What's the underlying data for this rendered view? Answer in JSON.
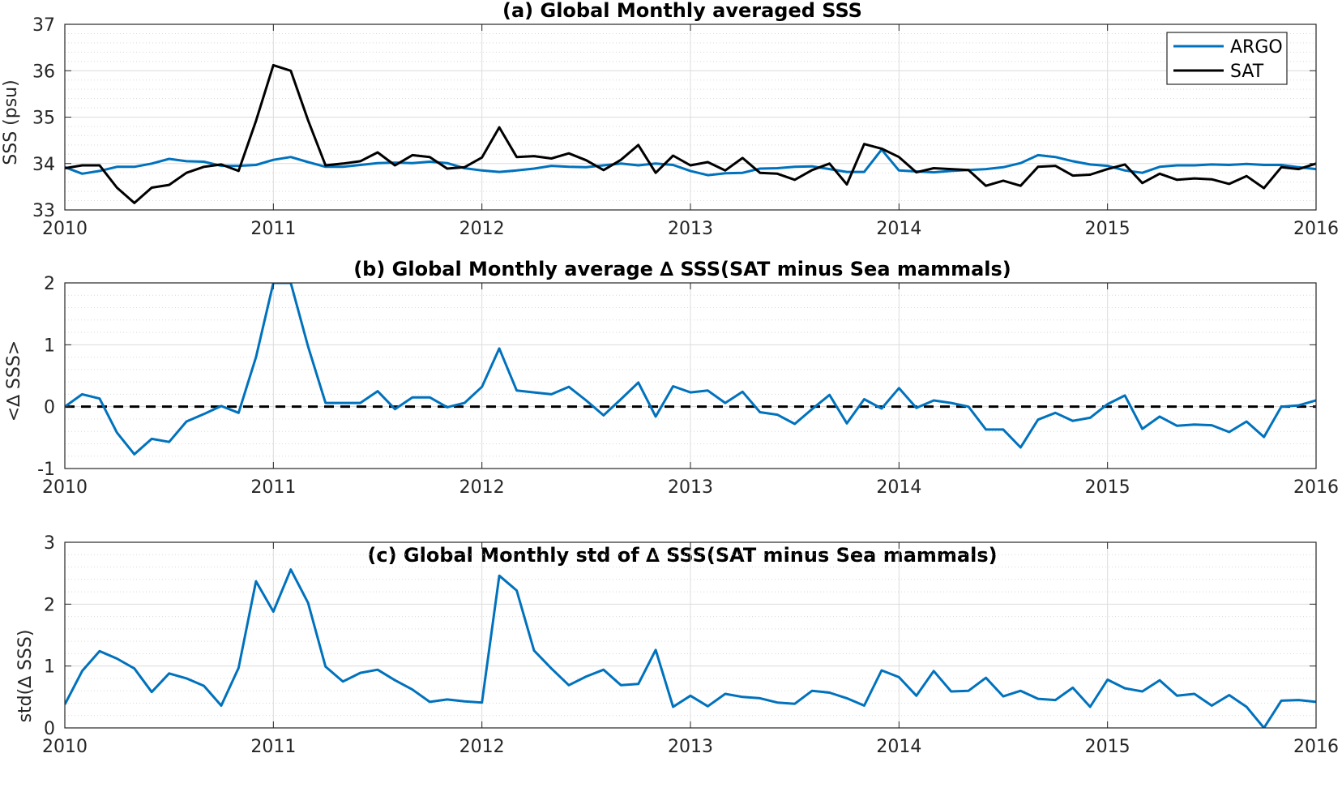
{
  "chart_data": [
    {
      "type": "line",
      "title": "(a) Global Monthly averaged SSS",
      "xlabel": "",
      "ylabel": "SSS (psu)",
      "xlim": [
        2010,
        2016
      ],
      "ylim": [
        33,
        37
      ],
      "xticks": [
        2010,
        2011,
        2012,
        2013,
        2014,
        2015,
        2016
      ],
      "yticks": [
        33,
        34,
        35,
        36,
        37
      ],
      "grid": true,
      "legend_position": "top-right",
      "series": [
        {
          "name": "ARGO",
          "color": "#0072BD",
          "x": [
            2010,
            2010.0833,
            2010.1667,
            2010.25,
            2010.3333,
            2010.4167,
            2010.5,
            2010.5833,
            2010.6667,
            2010.75,
            2010.8333,
            2010.9167,
            2011,
            2011.0833,
            2011.1667,
            2011.25,
            2011.3333,
            2011.4167,
            2011.5,
            2011.5833,
            2011.6667,
            2011.75,
            2011.8333,
            2011.9167,
            2012,
            2012.0833,
            2012.1667,
            2012.25,
            2012.3333,
            2012.4167,
            2012.5,
            2012.5833,
            2012.6667,
            2012.75,
            2012.8333,
            2012.9167,
            2013,
            2013.0833,
            2013.1667,
            2013.25,
            2013.3333,
            2013.4167,
            2013.5,
            2013.5833,
            2013.6667,
            2013.75,
            2013.8333,
            2013.9167,
            2014,
            2014.0833,
            2014.1667,
            2014.25,
            2014.3333,
            2014.4167,
            2014.5,
            2014.5833,
            2014.6667,
            2014.75,
            2014.8333,
            2014.9167,
            2015,
            2015.0833,
            2015.1667,
            2015.25,
            2015.3333,
            2015.4167,
            2015.5,
            2015.5833,
            2015.6667,
            2015.75,
            2015.8333,
            2015.9167,
            2016
          ],
          "y": [
            33.92,
            33.78,
            33.84,
            33.93,
            33.93,
            34.0,
            34.1,
            34.05,
            34.04,
            33.95,
            33.95,
            33.97,
            34.08,
            34.14,
            34.03,
            33.93,
            33.93,
            33.97,
            34.01,
            34.02,
            34.01,
            34.04,
            34.01,
            33.9,
            33.85,
            33.82,
            33.85,
            33.89,
            33.95,
            33.93,
            33.92,
            33.96,
            34.0,
            33.96,
            34.0,
            33.97,
            33.84,
            33.75,
            33.79,
            33.8,
            33.89,
            33.9,
            33.93,
            33.94,
            33.88,
            33.82,
            33.82,
            34.3,
            33.85,
            33.83,
            33.81,
            33.84,
            33.86,
            33.88,
            33.92,
            34.01,
            34.18,
            34.14,
            34.05,
            33.98,
            33.95,
            33.85,
            33.8,
            33.93,
            33.96,
            33.96,
            33.98,
            33.97,
            33.99,
            33.97,
            33.97,
            33.92,
            33.88
          ]
        },
        {
          "name": "SAT",
          "color": "#000000",
          "x": [
            2010,
            2010.0833,
            2010.1667,
            2010.25,
            2010.3333,
            2010.4167,
            2010.5,
            2010.5833,
            2010.6667,
            2010.75,
            2010.8333,
            2010.9167,
            2011,
            2011.0833,
            2011.1667,
            2011.25,
            2011.3333,
            2011.4167,
            2011.5,
            2011.5833,
            2011.6667,
            2011.75,
            2011.8333,
            2011.9167,
            2012,
            2012.0833,
            2012.1667,
            2012.25,
            2012.3333,
            2012.4167,
            2012.5,
            2012.5833,
            2012.6667,
            2012.75,
            2012.8333,
            2012.9167,
            2013,
            2013.0833,
            2013.1667,
            2013.25,
            2013.3333,
            2013.4167,
            2013.5,
            2013.5833,
            2013.6667,
            2013.75,
            2013.8333,
            2013.9167,
            2014,
            2014.0833,
            2014.1667,
            2014.25,
            2014.3333,
            2014.4167,
            2014.5,
            2014.5833,
            2014.6667,
            2014.75,
            2014.8333,
            2014.9167,
            2015,
            2015.0833,
            2015.1667,
            2015.25,
            2015.3333,
            2015.4167,
            2015.5,
            2015.5833,
            2015.6667,
            2015.75,
            2015.8333,
            2015.9167,
            2016
          ],
          "y": [
            33.9,
            33.96,
            33.96,
            33.48,
            33.15,
            33.48,
            33.54,
            33.8,
            33.93,
            33.98,
            33.84,
            34.92,
            36.12,
            36.0,
            34.93,
            33.96,
            34.0,
            34.05,
            34.24,
            33.96,
            34.18,
            34.14,
            33.89,
            33.92,
            34.13,
            34.78,
            34.14,
            34.16,
            34.11,
            34.22,
            34.07,
            33.86,
            34.08,
            34.4,
            33.8,
            34.17,
            33.96,
            34.03,
            33.85,
            34.12,
            33.8,
            33.78,
            33.65,
            33.86,
            34.0,
            33.55,
            34.42,
            34.32,
            34.14,
            33.81,
            33.9,
            33.88,
            33.86,
            33.52,
            33.63,
            33.52,
            33.93,
            33.95,
            33.74,
            33.76,
            33.88,
            33.98,
            33.58,
            33.78,
            33.65,
            33.68,
            33.66,
            33.56,
            33.73,
            33.47,
            33.92,
            33.88,
            34.0
          ]
        }
      ]
    },
    {
      "type": "line",
      "title": "(b) Global Monthly average ∆ SSS(SAT minus Sea mammals)",
      "xlabel": "",
      "ylabel": "<∆ SSS>",
      "xlim": [
        2010,
        2016
      ],
      "ylim": [
        -1,
        2
      ],
      "xticks": [
        2010,
        2011,
        2012,
        2013,
        2014,
        2015,
        2016
      ],
      "yticks": [
        -1,
        0,
        1,
        2
      ],
      "grid": true,
      "reference_line": {
        "y": 0,
        "style": "dashed",
        "color": "#000000"
      },
      "series": [
        {
          "color": "#0072BD",
          "x": [
            2010,
            2010.0833,
            2010.1667,
            2010.25,
            2010.3333,
            2010.4167,
            2010.5,
            2010.5833,
            2010.6667,
            2010.75,
            2010.8333,
            2010.9167,
            2011,
            2011.0833,
            2011.1667,
            2011.25,
            2011.3333,
            2011.4167,
            2011.5,
            2011.5833,
            2011.6667,
            2011.75,
            2011.8333,
            2011.9167,
            2012,
            2012.0833,
            2012.1667,
            2012.25,
            2012.3333,
            2012.4167,
            2012.5,
            2012.5833,
            2012.6667,
            2012.75,
            2012.8333,
            2012.9167,
            2013,
            2013.0833,
            2013.1667,
            2013.25,
            2013.3333,
            2013.4167,
            2013.5,
            2013.5833,
            2013.6667,
            2013.75,
            2013.8333,
            2013.9167,
            2014,
            2014.0833,
            2014.1667,
            2014.25,
            2014.3333,
            2014.4167,
            2014.5,
            2014.5833,
            2014.6667,
            2014.75,
            2014.8333,
            2014.9167,
            2015,
            2015.0833,
            2015.1667,
            2015.25,
            2015.3333,
            2015.4167,
            2015.5,
            2015.5833,
            2015.6667,
            2015.75,
            2015.8333,
            2015.9167,
            2016
          ],
          "y": [
            0.0,
            0.2,
            0.13,
            -0.42,
            -0.77,
            -0.52,
            -0.57,
            -0.24,
            -0.12,
            0.01,
            -0.1,
            0.8,
            2.0,
            2.0,
            0.97,
            0.06,
            0.06,
            0.06,
            0.25,
            -0.04,
            0.15,
            0.15,
            -0.01,
            0.06,
            0.32,
            0.94,
            0.26,
            0.23,
            0.2,
            0.32,
            0.1,
            -0.14,
            0.12,
            0.39,
            -0.16,
            0.33,
            0.23,
            0.26,
            0.06,
            0.24,
            -0.09,
            -0.13,
            -0.28,
            -0.04,
            0.19,
            -0.27,
            0.12,
            -0.03,
            0.3,
            -0.02,
            0.1,
            0.06,
            0.0,
            -0.37,
            -0.37,
            -0.66,
            -0.21,
            -0.1,
            -0.23,
            -0.18,
            0.04,
            0.18,
            -0.36,
            -0.16,
            -0.31,
            -0.29,
            -0.3,
            -0.41,
            -0.24,
            -0.49,
            0.0,
            0.02,
            0.1
          ]
        }
      ]
    },
    {
      "type": "line",
      "title": "(c) Global Monthly std of ∆ SSS(SAT minus Sea mammals)",
      "xlabel": "",
      "ylabel": "std(∆ SSS)",
      "xlim": [
        2010,
        2016
      ],
      "ylim": [
        0,
        3
      ],
      "xticks": [
        2010,
        2011,
        2012,
        2013,
        2014,
        2015,
        2016
      ],
      "yticks": [
        0,
        1,
        2,
        3
      ],
      "grid": true,
      "series": [
        {
          "color": "#0072BD",
          "x": [
            2010,
            2010.0833,
            2010.1667,
            2010.25,
            2010.3333,
            2010.4167,
            2010.5,
            2010.5833,
            2010.6667,
            2010.75,
            2010.8333,
            2010.9167,
            2011,
            2011.0833,
            2011.1667,
            2011.25,
            2011.3333,
            2011.4167,
            2011.5,
            2011.5833,
            2011.6667,
            2011.75,
            2011.8333,
            2011.9167,
            2012,
            2012.0833,
            2012.1667,
            2012.25,
            2012.3333,
            2012.4167,
            2012.5,
            2012.5833,
            2012.6667,
            2012.75,
            2012.8333,
            2012.9167,
            2013,
            2013.0833,
            2013.1667,
            2013.25,
            2013.3333,
            2013.4167,
            2013.5,
            2013.5833,
            2013.6667,
            2013.75,
            2013.8333,
            2013.9167,
            2014,
            2014.0833,
            2014.1667,
            2014.25,
            2014.3333,
            2014.4167,
            2014.5,
            2014.5833,
            2014.6667,
            2014.75,
            2014.8333,
            2014.9167,
            2015,
            2015.0833,
            2015.1667,
            2015.25,
            2015.3333,
            2015.4167,
            2015.5,
            2015.5833,
            2015.6667,
            2015.75,
            2015.8333,
            2015.9167,
            2016
          ],
          "y": [
            0.38,
            0.92,
            1.24,
            1.12,
            0.96,
            0.58,
            0.88,
            0.8,
            0.68,
            0.36,
            0.97,
            2.37,
            1.88,
            2.56,
            2.02,
            0.99,
            0.75,
            0.89,
            0.94,
            0.77,
            0.62,
            0.42,
            0.46,
            0.43,
            0.41,
            2.46,
            2.22,
            1.25,
            0.96,
            0.69,
            0.83,
            0.94,
            0.69,
            0.71,
            1.26,
            0.34,
            0.52,
            0.35,
            0.55,
            0.5,
            0.48,
            0.41,
            0.39,
            0.6,
            0.57,
            0.48,
            0.36,
            0.93,
            0.82,
            0.52,
            0.92,
            0.59,
            0.6,
            0.81,
            0.51,
            0.6,
            0.47,
            0.45,
            0.65,
            0.34,
            0.78,
            0.64,
            0.59,
            0.77,
            0.52,
            0.55,
            0.36,
            0.53,
            0.34,
            0.0,
            0.44,
            0.45,
            0.42
          ]
        }
      ]
    }
  ]
}
